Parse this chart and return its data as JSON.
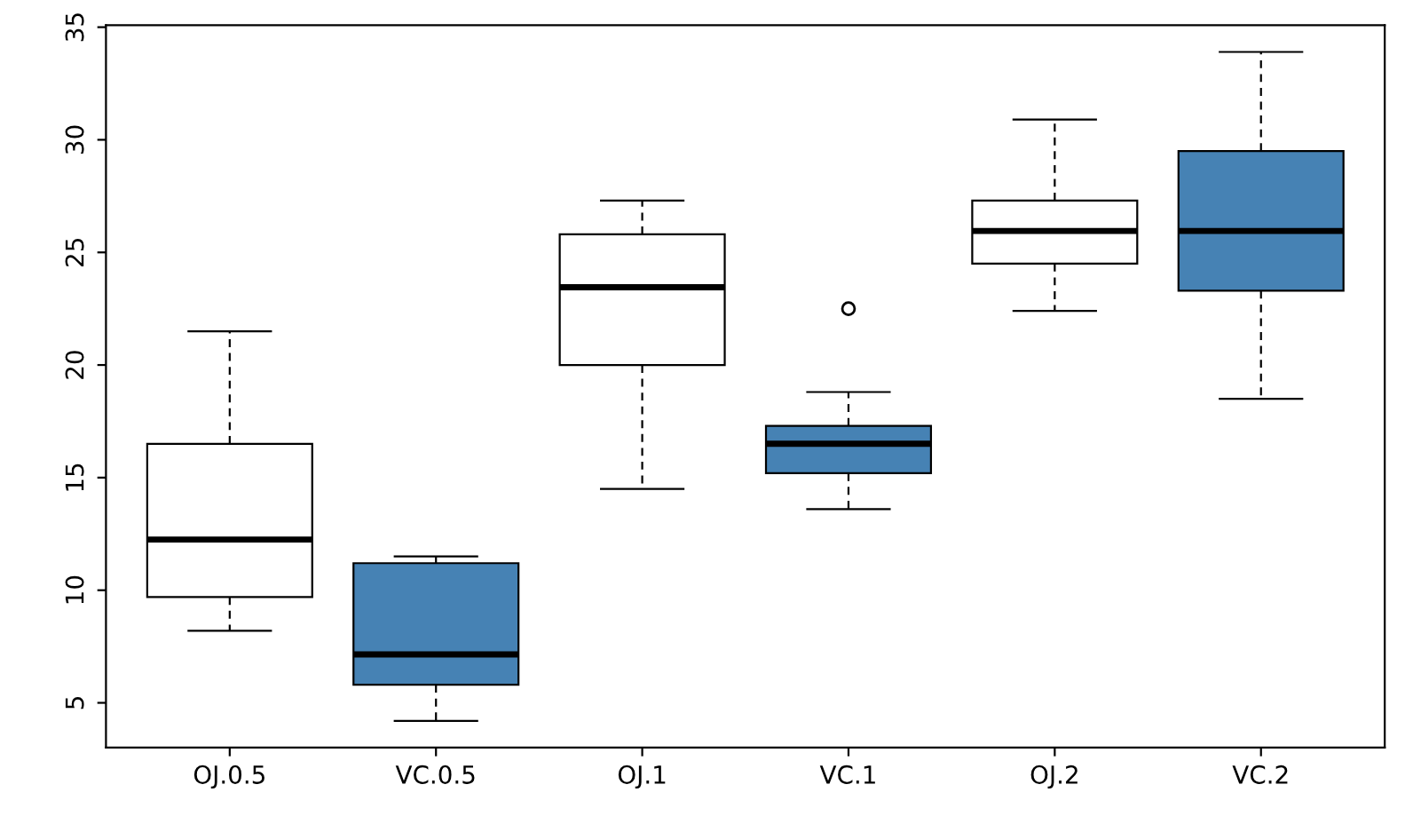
{
  "chart_data": {
    "type": "box",
    "categories": [
      "OJ.0.5",
      "VC.0.5",
      "OJ.1",
      "VC.1",
      "OJ.2",
      "VC.2"
    ],
    "boxes": [
      {
        "low": 8.2,
        "q1": 9.7,
        "median": 12.25,
        "q3": 16.5,
        "high": 21.5
      },
      {
        "low": 4.2,
        "q1": 5.8,
        "median": 7.15,
        "q3": 11.2,
        "high": 11.5
      },
      {
        "low": 14.5,
        "q1": 20,
        "median": 23.45,
        "q3": 25.8,
        "high": 27.3
      },
      {
        "low": 13.6,
        "q1": 15.2,
        "median": 16.5,
        "q3": 17.3,
        "high": 18.8,
        "outliers": [
          22.5
        ]
      },
      {
        "low": 22.4,
        "q1": 24.5,
        "median": 25.95,
        "q3": 27.3,
        "high": 30.9
      },
      {
        "low": 18.5,
        "q1": 23.3,
        "median": 25.95,
        "q3": 29.5,
        "high": 33.9
      }
    ],
    "colors": [
      "#ffffff",
      "#4682b4",
      "#ffffff",
      "#4682b4",
      "#ffffff",
      "#4682b4"
    ],
    "ylim": [
      3.012,
      35.088
    ],
    "yticks": [
      5,
      10,
      15,
      20,
      25,
      30,
      35
    ],
    "grid": false
  }
}
